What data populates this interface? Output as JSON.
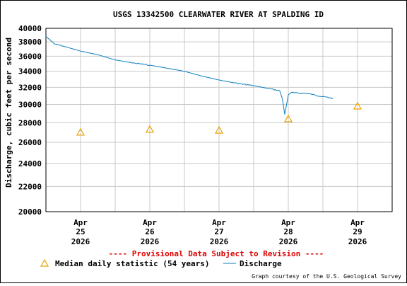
{
  "chart_data": {
    "type": "line",
    "title": "USGS 13342500 CLEARWATER RIVER AT SPALDING ID",
    "ylabel": "Discharge, cubic feet per second",
    "xlabel": "",
    "y_scale": "log",
    "ylim": [
      20000,
      40000
    ],
    "y_ticks": [
      20000,
      22000,
      24000,
      26000,
      28000,
      30000,
      32000,
      34000,
      36000,
      38000,
      40000
    ],
    "x_ticks": [
      {
        "month": "Apr",
        "day": "25",
        "year": "2026"
      },
      {
        "month": "Apr",
        "day": "26",
        "year": "2026"
      },
      {
        "month": "Apr",
        "day": "27",
        "year": "2026"
      },
      {
        "month": "Apr",
        "day": "28",
        "year": "2026"
      },
      {
        "month": "Apr",
        "day": "29",
        "year": "2026"
      }
    ],
    "grid": true,
    "legend_position": "bottom",
    "series": [
      {
        "name": "Discharge",
        "kind": "line",
        "color": "#0b7dbf",
        "x": [
          "2026-04-24 12:00",
          "2026-04-24 15:00",
          "2026-04-24 18:00",
          "2026-04-25 00:00",
          "2026-04-25 06:00",
          "2026-04-25 12:00",
          "2026-04-25 18:00",
          "2026-04-26 00:00",
          "2026-04-26 06:00",
          "2026-04-26 12:00",
          "2026-04-26 18:00",
          "2026-04-27 00:00",
          "2026-04-27 06:00",
          "2026-04-27 12:00",
          "2026-04-27 18:00",
          "2026-04-27 21:00",
          "2026-04-27 22:00",
          "2026-04-27 22:45",
          "2026-04-27 23:15",
          "2026-04-28 00:00",
          "2026-04-28 01:00",
          "2026-04-28 03:00",
          "2026-04-28 06:00",
          "2026-04-28 09:00",
          "2026-04-28 12:00",
          "2026-04-28 15:30"
        ],
        "y": [
          38800,
          37700,
          37400,
          36700,
          36200,
          35500,
          35100,
          34800,
          34400,
          34000,
          33400,
          32900,
          32500,
          32200,
          31800,
          31600,
          30600,
          28900,
          29700,
          31100,
          31400,
          31300,
          31300,
          31100,
          30900,
          30700
        ]
      },
      {
        "name": "Median daily statistic (54 years)",
        "kind": "marker",
        "marker": "triangle",
        "color": "#e8a200",
        "x": [
          "2026-04-25 00:00",
          "2026-04-26 00:00",
          "2026-04-27 00:00",
          "2026-04-28 00:00",
          "2026-04-29 00:00"
        ],
        "y": [
          27000,
          27300,
          27200,
          28400,
          29800
        ]
      }
    ]
  },
  "notice": "---- Provisional Data Subject to Revision ----",
  "colors": {
    "notice": "#dd0000",
    "grid": "#c8c8c8"
  },
  "credit": "Graph courtesy of the U.S. Geological Survey"
}
